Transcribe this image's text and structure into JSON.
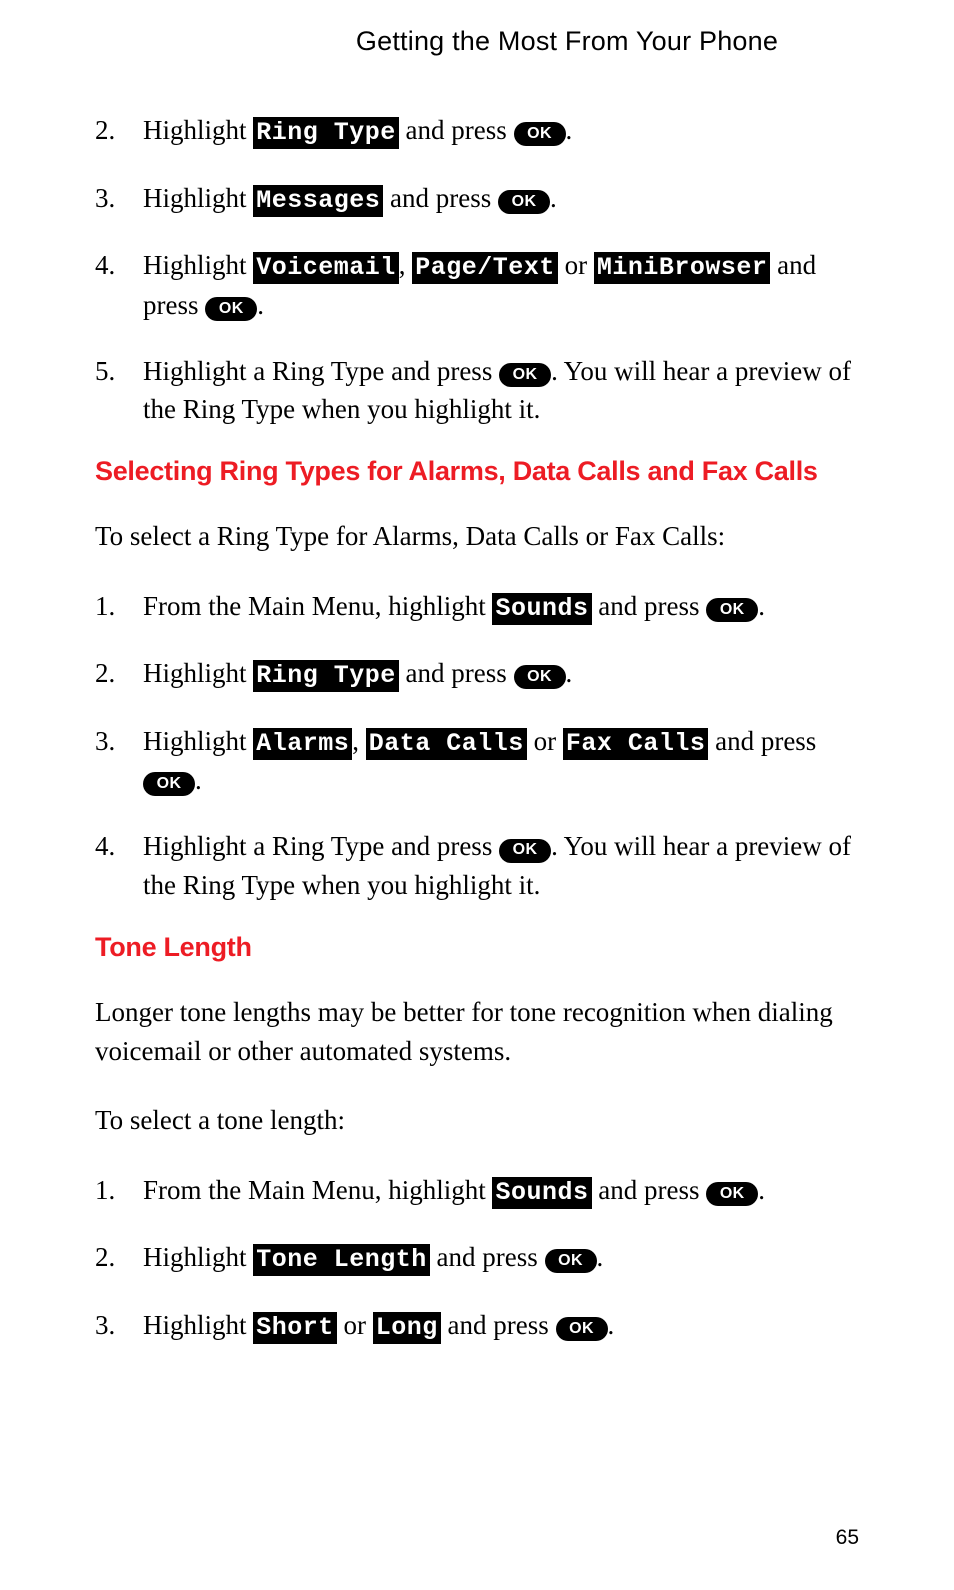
{
  "header": {
    "title": "Getting the Most From Your Phone"
  },
  "colors": {
    "heading_red": "#ed1c24",
    "menu_bg": "#000000",
    "menu_fg": "#ffffff",
    "ok_bg": "#000000",
    "ok_fg": "#ffffff",
    "body_text": "#000000",
    "page_bg": "#ffffff"
  },
  "typography": {
    "body_font": "Times New Roman",
    "heading_font": "Helvetica",
    "menu_font": "Courier New",
    "body_size_pt": 27,
    "heading_size_pt": 27,
    "menu_size_pt": 25,
    "ok_size_pt": 16
  },
  "ok_label": "OK",
  "sections": [
    {
      "type": "steps",
      "start_number": 2,
      "items": [
        {
          "num": "2.",
          "parts": [
            {
              "t": "text",
              "v": "Highlight "
            },
            {
              "t": "menu",
              "v": "Ring Type"
            },
            {
              "t": "text",
              "v": " and press "
            },
            {
              "t": "ok"
            },
            {
              "t": "text",
              "v": "."
            }
          ]
        },
        {
          "num": "3.",
          "parts": [
            {
              "t": "text",
              "v": "Highlight "
            },
            {
              "t": "menu",
              "v": "Messages"
            },
            {
              "t": "text",
              "v": " and press "
            },
            {
              "t": "ok"
            },
            {
              "t": "text",
              "v": "."
            }
          ]
        },
        {
          "num": "4.",
          "parts": [
            {
              "t": "text",
              "v": "Highlight "
            },
            {
              "t": "menu",
              "v": "Voicemail"
            },
            {
              "t": "text",
              "v": ", "
            },
            {
              "t": "menu",
              "v": "Page/Text"
            },
            {
              "t": "text",
              "v": " or "
            },
            {
              "t": "menu",
              "v": "MiniBrowser"
            },
            {
              "t": "text",
              "v": " and press "
            },
            {
              "t": "ok"
            },
            {
              "t": "text",
              "v": "."
            }
          ]
        },
        {
          "num": "5.",
          "parts": [
            {
              "t": "text",
              "v": "Highlight a Ring Type and press "
            },
            {
              "t": "ok"
            },
            {
              "t": "text",
              "v": ". You will hear a preview of the Ring Type when you highlight it."
            }
          ]
        }
      ]
    },
    {
      "type": "heading",
      "text": "Selecting Ring Types for Alarms, Data Calls and Fax Calls"
    },
    {
      "type": "intro",
      "text": "To select a Ring Type for Alarms, Data Calls or Fax Calls:"
    },
    {
      "type": "steps",
      "start_number": 1,
      "items": [
        {
          "num": "1.",
          "parts": [
            {
              "t": "text",
              "v": "From the Main Menu, highlight "
            },
            {
              "t": "menu",
              "v": "Sounds"
            },
            {
              "t": "text",
              "v": " and press "
            },
            {
              "t": "ok"
            },
            {
              "t": "text",
              "v": "."
            }
          ]
        },
        {
          "num": "2.",
          "parts": [
            {
              "t": "text",
              "v": "Highlight "
            },
            {
              "t": "menu",
              "v": "Ring Type"
            },
            {
              "t": "text",
              "v": " and press "
            },
            {
              "t": "ok"
            },
            {
              "t": "text",
              "v": "."
            }
          ]
        },
        {
          "num": "3.",
          "parts": [
            {
              "t": "text",
              "v": "Highlight "
            },
            {
              "t": "menu",
              "v": "Alarms"
            },
            {
              "t": "text",
              "v": ", "
            },
            {
              "t": "menu",
              "v": "Data Calls"
            },
            {
              "t": "text",
              "v": " or "
            },
            {
              "t": "menu",
              "v": "Fax Calls"
            },
            {
              "t": "text",
              "v": " and press "
            },
            {
              "t": "ok"
            },
            {
              "t": "text",
              "v": "."
            }
          ]
        },
        {
          "num": "4.",
          "parts": [
            {
              "t": "text",
              "v": "Highlight a Ring Type and press "
            },
            {
              "t": "ok"
            },
            {
              "t": "text",
              "v": ". You will hear a preview of the Ring Type when you highlight it."
            }
          ]
        }
      ]
    },
    {
      "type": "heading",
      "text": "Tone Length"
    },
    {
      "type": "intro",
      "text": "Longer tone lengths may be better for tone recognition when dialing voicemail or other automated systems."
    },
    {
      "type": "intro",
      "text": "To select a tone length:"
    },
    {
      "type": "steps",
      "start_number": 1,
      "items": [
        {
          "num": "1.",
          "parts": [
            {
              "t": "text",
              "v": "From the Main Menu, highlight "
            },
            {
              "t": "menu",
              "v": "Sounds"
            },
            {
              "t": "text",
              "v": " and press "
            },
            {
              "t": "ok"
            },
            {
              "t": "text",
              "v": "."
            }
          ]
        },
        {
          "num": "2.",
          "parts": [
            {
              "t": "text",
              "v": "Highlight "
            },
            {
              "t": "menu",
              "v": "Tone Length"
            },
            {
              "t": "text",
              "v": " and press "
            },
            {
              "t": "ok"
            },
            {
              "t": "text",
              "v": "."
            }
          ]
        },
        {
          "num": "3.",
          "parts": [
            {
              "t": "text",
              "v": "Highlight "
            },
            {
              "t": "menu",
              "v": "Short"
            },
            {
              "t": "text",
              "v": " or "
            },
            {
              "t": "menu",
              "v": "Long"
            },
            {
              "t": "text",
              "v": " and press "
            },
            {
              "t": "ok"
            },
            {
              "t": "text",
              "v": "."
            }
          ]
        }
      ]
    }
  ],
  "page_number": "65"
}
